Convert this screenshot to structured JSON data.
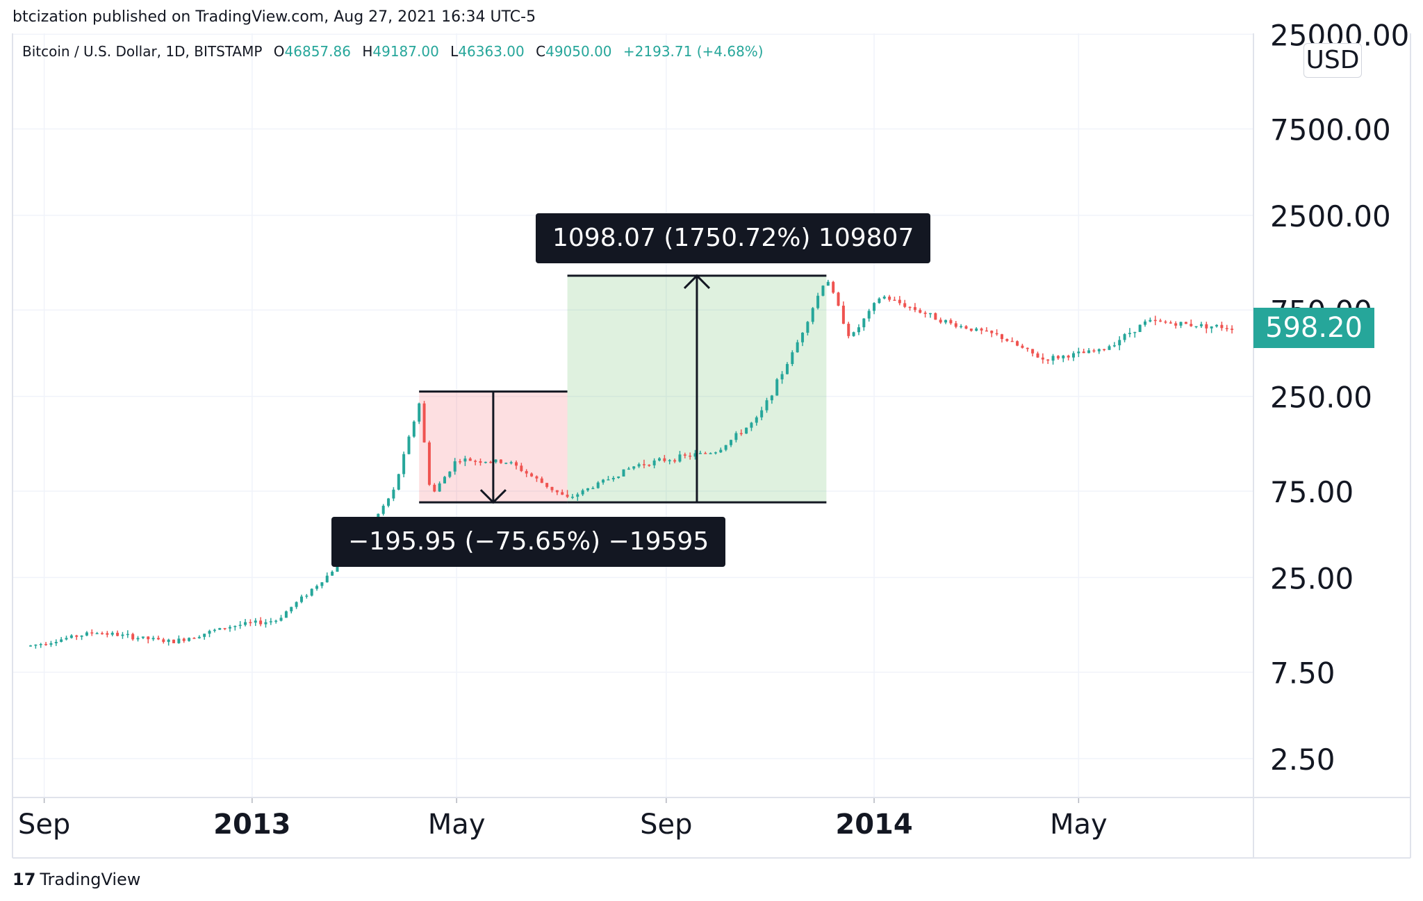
{
  "header": {
    "published": "btcization published on TradingView.com, Aug 27, 2021 16:34 UTC-5"
  },
  "legend": {
    "symbol": "Bitcoin / U.S. Dollar, 1D, BITSTAMP",
    "o_label": "O",
    "o_value": "46857.86",
    "h_label": "H",
    "h_value": "49187.00",
    "l_label": "L",
    "l_value": "46363.00",
    "c_label": "C",
    "c_value": "49050.00",
    "change": "+2193.71 (+4.68%)"
  },
  "price_scale": {
    "currency": "USD",
    "last_price": "598.20"
  },
  "measurements": {
    "drop_label": "−195.95 (−75.65%) −19595",
    "rise_label": "1098.07 (1750.72%) 109807"
  },
  "footer": {
    "logo_text": "TradingView",
    "logo_mark": "17"
  },
  "colors": {
    "up": "#26a69a",
    "down": "#ef5350",
    "drop_fill": "rgba(242,54,69,0.16)",
    "rise_fill": "rgba(76,175,80,0.18)",
    "label_bg": "#131722",
    "grid": "#f0f3fa"
  },
  "chart_data": {
    "type": "candlestick",
    "scale": "log",
    "y_ticks": [
      "2.50",
      "7.50",
      "25.00",
      "75.00",
      "250.00",
      "750.00",
      "2500.00",
      "7500.00",
      "25000.00"
    ],
    "y_tick_values": [
      2.5,
      7.5,
      25,
      75,
      250,
      750,
      2500,
      7500,
      25000
    ],
    "x_ticks": [
      "Sep",
      "2013",
      "May",
      "Sep",
      "2014",
      "May"
    ],
    "x_tick_dates": [
      "2012-09-01",
      "2013-01-01",
      "2013-05-01",
      "2013-09-01",
      "2014-01-01",
      "2014-05-01"
    ],
    "x_range": [
      "2012-08-24",
      "2014-08-01"
    ],
    "series": [
      {
        "x": [
          "2012-08-24",
          "2012-10-01",
          "2012-11-15",
          "2012-12-20",
          "2013-01-15",
          "2013-02-15",
          "2013-03-10",
          "2013-03-25",
          "2013-04-09",
          "2013-04-16",
          "2013-05-01",
          "2013-06-01",
          "2013-07-05",
          "2013-08-15",
          "2013-10-01",
          "2013-10-25",
          "2013-11-15",
          "2013-12-04",
          "2013-12-18",
          "2014-01-05",
          "2014-02-15",
          "2014-03-15",
          "2014-04-10",
          "2014-05-15",
          "2014-06-10",
          "2014-07-31"
        ],
        "values": [
          10.5,
          12.5,
          11,
          13.5,
          14.5,
          26,
          46,
          75,
          230,
          70,
          112,
          108,
          68,
          105,
          125,
          190,
          450,
          1150,
          520,
          900,
          630,
          540,
          400,
          450,
          650,
          598.2
        ]
      }
    ],
    "annotations": [
      {
        "kind": "range-drop",
        "from": "2013-04-09",
        "to": "2013-07-05",
        "high": 266,
        "low": 65,
        "label": "−195.95 (−75.65%) −19595"
      },
      {
        "kind": "range-rise",
        "from": "2013-07-05",
        "to": "2013-12-04",
        "high": 1160,
        "low": 65,
        "label": "1098.07 (1750.72%) 109807"
      }
    ]
  }
}
